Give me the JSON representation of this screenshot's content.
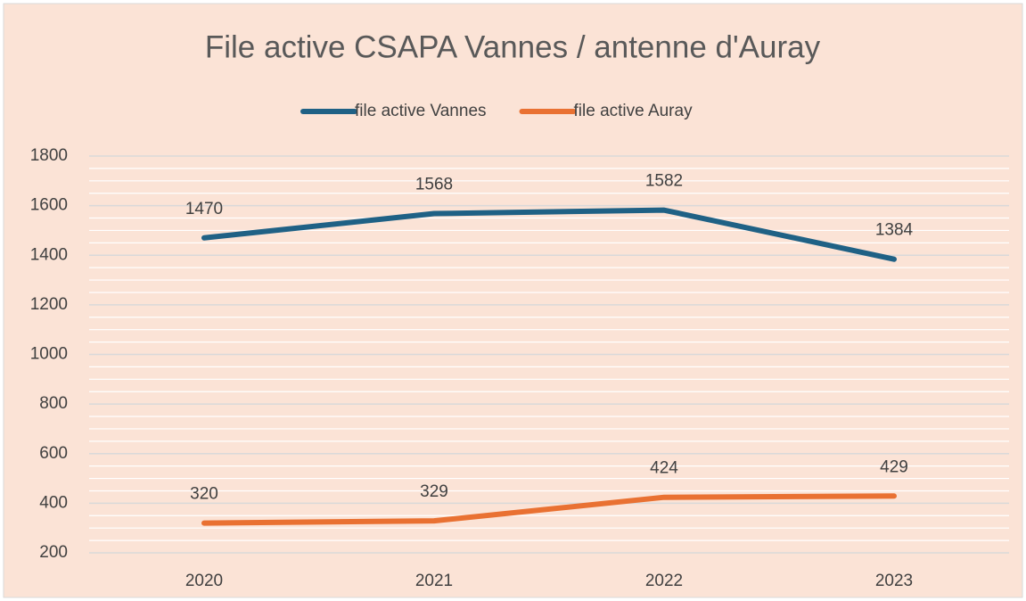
{
  "chart_data": {
    "type": "line",
    "title": "File active CSAPA Vannes / antenne d'Auray",
    "categories": [
      "2020",
      "2021",
      "2022",
      "2023"
    ],
    "series": [
      {
        "name": "file active Vannes",
        "color": "#1f6185",
        "values": [
          1470,
          1568,
          1582,
          1384
        ]
      },
      {
        "name": "file active Auray",
        "color": "#e97132",
        "values": [
          320,
          329,
          424,
          429
        ]
      }
    ],
    "ylim": [
      200,
      1800
    ],
    "yticks": [
      200,
      400,
      600,
      800,
      1000,
      1200,
      1400,
      1600,
      1800
    ],
    "yminorticks": [
      250,
      300,
      350,
      450,
      500,
      550,
      650,
      700,
      750,
      850,
      900,
      950,
      1050,
      1100,
      1150,
      1250,
      1300,
      1350,
      1450,
      1500,
      1550,
      1650,
      1700,
      1750
    ],
    "grid": true,
    "legend": "top"
  }
}
